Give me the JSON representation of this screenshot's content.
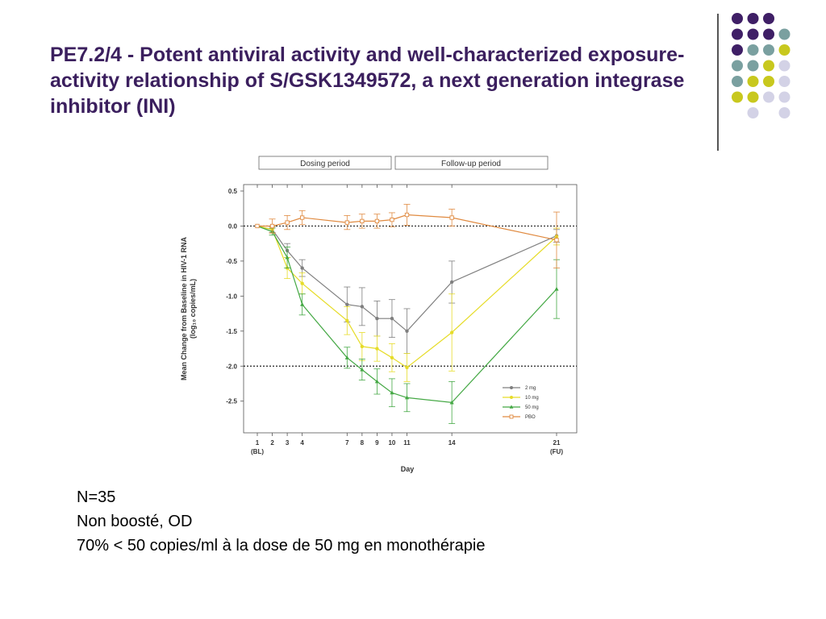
{
  "slide": {
    "title": "PE7.2/4 - Potent antiviral activity and well-characterized exposure-activity relationship of S/GSK1349572, a next generation integrase inhibitor (INI)",
    "notes": [
      "N=35",
      "Non boosté, OD",
      "70% < 50 copies/ml à la dose de 50 mg en monothérapie"
    ]
  },
  "decoration": {
    "dot_colors": {
      "purple": "#3f1f66",
      "teal": "#7aa0a0",
      "yellow": "#c8c81e",
      "lavender": "#d3d2e6"
    },
    "dot_grid": [
      [
        "purple",
        "purple",
        "purple",
        null
      ],
      [
        "purple",
        "purple",
        "purple",
        "teal"
      ],
      [
        "purple",
        "teal",
        "teal",
        "yellow"
      ],
      [
        "teal",
        "teal",
        "yellow",
        "lavender"
      ],
      [
        "teal",
        "yellow",
        "yellow",
        "lavender"
      ],
      [
        "yellow",
        "yellow",
        "lavender",
        "lavender"
      ],
      [
        null,
        "lavender",
        null,
        "lavender"
      ]
    ]
  },
  "chart_data": {
    "type": "line",
    "period_labels": [
      "Dosing period",
      "Follow-up period"
    ],
    "xlabel": "Day",
    "ylabel_line1": "Mean Change from Baseline  in HIV-1 RNA",
    "ylabel_line2": "(log₁₀ copies/mL)",
    "x_ticks": [
      1,
      2,
      3,
      4,
      7,
      8,
      9,
      10,
      11,
      14,
      21
    ],
    "x_tick_sublabels": {
      "1": "(BL)",
      "21": "(FU)"
    },
    "x_range": [
      1,
      21
    ],
    "ylim": [
      -3.0,
      0.5
    ],
    "y_ticks": [
      0.5,
      0.0,
      -0.5,
      -1.0,
      -1.5,
      -2.0,
      -2.5
    ],
    "y_tick_labels": [
      "0.5",
      "0.0",
      "-0.5",
      "-1.0",
      "-1.5",
      "-2.0",
      "-2.5"
    ],
    "reference_lines": [
      0.0,
      -2.0
    ],
    "legend_position": "bottom-right",
    "series": [
      {
        "name": "2 mg",
        "color": "#7f7f7f",
        "marker": "circle",
        "points": [
          [
            1,
            0.0
          ],
          [
            2,
            -0.05
          ],
          [
            3,
            -0.35
          ],
          [
            4,
            -0.6
          ],
          [
            7,
            -1.12
          ],
          [
            8,
            -1.15
          ],
          [
            9,
            -1.32
          ],
          [
            10,
            -1.32
          ],
          [
            11,
            -1.5
          ],
          [
            14,
            -0.8
          ],
          [
            21,
            -0.14
          ]
        ],
        "err": [
          0,
          0.04,
          0.1,
          0.12,
          0.25,
          0.27,
          0.25,
          0.27,
          0.32,
          0.3,
          0.09
        ]
      },
      {
        "name": "10 mg",
        "color": "#e6dc28",
        "marker": "circle",
        "points": [
          [
            1,
            0.0
          ],
          [
            2,
            -0.05
          ],
          [
            3,
            -0.6
          ],
          [
            4,
            -0.82
          ],
          [
            7,
            -1.35
          ],
          [
            8,
            -1.72
          ],
          [
            9,
            -1.75
          ],
          [
            10,
            -1.88
          ],
          [
            11,
            -2.02
          ],
          [
            14,
            -1.52
          ],
          [
            21,
            -0.15
          ]
        ],
        "err": [
          0,
          0.05,
          0.15,
          0.15,
          0.2,
          0.2,
          0.18,
          0.2,
          0.2,
          0.55,
          0.12
        ]
      },
      {
        "name": "50 mg",
        "color": "#44a844",
        "marker": "triangle",
        "points": [
          [
            1,
            0.0
          ],
          [
            2,
            -0.08
          ],
          [
            3,
            -0.45
          ],
          [
            4,
            -1.12
          ],
          [
            7,
            -1.88
          ],
          [
            8,
            -2.05
          ],
          [
            9,
            -2.22
          ],
          [
            10,
            -2.38
          ],
          [
            11,
            -2.45
          ],
          [
            14,
            -2.52
          ],
          [
            21,
            -0.9
          ]
        ],
        "err": [
          0,
          0.05,
          0.15,
          0.15,
          0.15,
          0.15,
          0.18,
          0.2,
          0.2,
          0.3,
          0.42
        ]
      },
      {
        "name": "PBO",
        "color": "#e08a40",
        "marker": "square",
        "points": [
          [
            1,
            0.0
          ],
          [
            2,
            0.0
          ],
          [
            3,
            0.05
          ],
          [
            4,
            0.12
          ],
          [
            7,
            0.05
          ],
          [
            8,
            0.07
          ],
          [
            9,
            0.07
          ],
          [
            10,
            0.09
          ],
          [
            11,
            0.16
          ],
          [
            14,
            0.12
          ],
          [
            21,
            -0.2
          ]
        ],
        "err": [
          0,
          0.1,
          0.1,
          0.1,
          0.1,
          0.1,
          0.1,
          0.1,
          0.15,
          0.12,
          0.4
        ]
      }
    ]
  }
}
